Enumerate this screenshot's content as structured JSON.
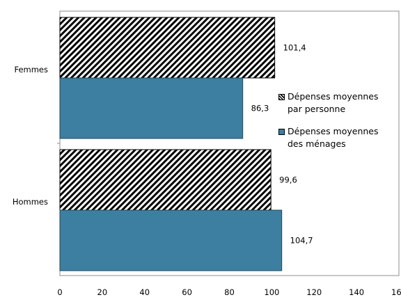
{
  "chart_data": {
    "type": "bar",
    "orientation": "horizontal",
    "categories": [
      "Femmes",
      "Hommes"
    ],
    "series": [
      {
        "name": "Dépenses moyennes par personne",
        "values": [
          101.4,
          99.6
        ],
        "value_labels": [
          "101,4",
          "99,6"
        ],
        "fill": "hatched",
        "color": "#000000"
      },
      {
        "name": "Dépenses moyennes des ménages",
        "values": [
          86.3,
          104.7
        ],
        "value_labels": [
          "86,3",
          "104,7"
        ],
        "fill": "solid",
        "color": "#3c7fa0"
      }
    ],
    "xlim": [
      0,
      160
    ],
    "xticks": [
      "0",
      "20",
      "40",
      "60",
      "80",
      "100",
      "120",
      "140",
      "160"
    ],
    "grid": false,
    "legend_position": "right",
    "legend": [
      {
        "lines": [
          "Dépenses moyennes",
          "par personne"
        ]
      },
      {
        "lines": [
          "Dépenses moyennes",
          "des ménages"
        ]
      }
    ]
  }
}
